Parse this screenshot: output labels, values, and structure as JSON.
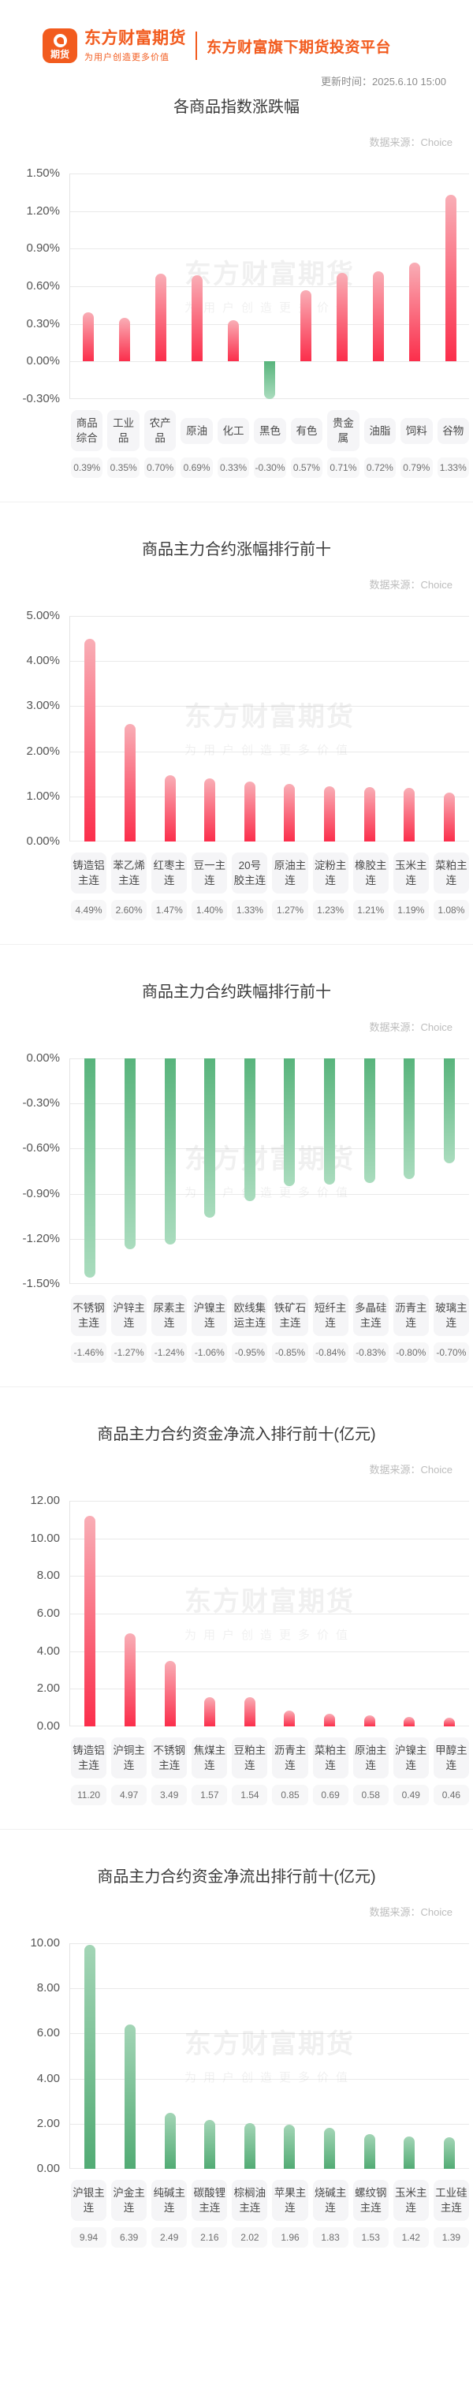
{
  "header": {
    "logo_icon_text": "期货",
    "brand": "东方财富期货",
    "slogan": "为用户创造更多价值",
    "platform_tagline": "东方财富旗下期货投资平台",
    "update_time": "更新时间：2025.6.10 15:00"
  },
  "watermark": {
    "line1": "东方财富期货",
    "line2": "为用户创造更多价值"
  },
  "colors": {
    "brand_orange": "#f25b1e",
    "bar_red_base": "#fb2e4b",
    "bar_red_tip": "#f9aeb6",
    "bar_green_base": "#52ab74",
    "bar_green_tip": "#aadcbe",
    "gridline": "#e9e9e9",
    "label_box_bg": "#f5f5f7"
  },
  "chart_data": [
    {
      "type": "bar",
      "title": "各商品指数涨跌幅",
      "source": "数据来源：Choice",
      "color": "auto",
      "axis": {
        "max": 1.5,
        "min": -0.3,
        "step": 0.3,
        "decimals": 2,
        "suffix": "%"
      },
      "grid": true,
      "categories": [
        "商品综合",
        "工业品",
        "农产品",
        "原油",
        "化工",
        "黑色",
        "有色",
        "贵金属",
        "油脂",
        "饲料",
        "谷物"
      ],
      "values": [
        0.39,
        0.35,
        0.7,
        0.69,
        0.33,
        -0.3,
        0.57,
        0.71,
        0.72,
        0.79,
        1.33
      ],
      "labels": [
        "0.39%",
        "0.35%",
        "0.70%",
        "0.69%",
        "0.33%",
        "-0.30%",
        "0.57%",
        "0.71%",
        "0.72%",
        "0.79%",
        "1.33%"
      ]
    },
    {
      "type": "bar",
      "title": "商品主力合约涨幅排行前十",
      "source": "数据来源：Choice",
      "color": "red",
      "axis": {
        "max": 5.0,
        "min": 0.0,
        "step": 1.0,
        "decimals": 2,
        "suffix": "%"
      },
      "grid": true,
      "categories": [
        "铸造铝主连",
        "苯乙烯主连",
        "红枣主连",
        "豆一主连",
        "20号胶主连",
        "原油主连",
        "淀粉主连",
        "橡胶主连",
        "玉米主连",
        "菜粕主连"
      ],
      "values": [
        4.49,
        2.6,
        1.47,
        1.4,
        1.33,
        1.27,
        1.23,
        1.21,
        1.19,
        1.08
      ],
      "labels": [
        "4.49%",
        "2.60%",
        "1.47%",
        "1.40%",
        "1.33%",
        "1.27%",
        "1.23%",
        "1.21%",
        "1.19%",
        "1.08%"
      ]
    },
    {
      "type": "bar",
      "title": "商品主力合约跌幅排行前十",
      "source": "数据来源：Choice",
      "color": "green",
      "axis": {
        "max": 0.0,
        "min": -1.5,
        "step": 0.3,
        "decimals": 2,
        "suffix": "%"
      },
      "grid": true,
      "categories": [
        "不锈钢主连",
        "沪锌主连",
        "尿素主连",
        "沪镍主连",
        "欧线集运主连",
        "铁矿石主连",
        "短纤主连",
        "多晶硅主连",
        "沥青主连",
        "玻璃主连"
      ],
      "values": [
        -1.46,
        -1.27,
        -1.24,
        -1.06,
        -0.95,
        -0.85,
        -0.84,
        -0.83,
        -0.8,
        -0.7
      ],
      "labels": [
        "-1.46%",
        "-1.27%",
        "-1.24%",
        "-1.06%",
        "-0.95%",
        "-0.85%",
        "-0.84%",
        "-0.83%",
        "-0.80%",
        "-0.70%"
      ]
    },
    {
      "type": "bar",
      "title": "商品主力合约资金净流入排行前十(亿元)",
      "source": "数据来源：Choice",
      "color": "red",
      "axis": {
        "max": 12.0,
        "min": 0.0,
        "step": 2.0,
        "decimals": 2,
        "suffix": ""
      },
      "grid": true,
      "categories": [
        "铸造铝主连",
        "沪铜主连",
        "不锈钢主连",
        "焦煤主连",
        "豆粕主连",
        "沥青主连",
        "菜粕主连",
        "原油主连",
        "沪镍主连",
        "甲醇主连"
      ],
      "values": [
        11.2,
        4.97,
        3.49,
        1.57,
        1.54,
        0.85,
        0.69,
        0.58,
        0.49,
        0.46
      ],
      "labels": [
        "11.20",
        "4.97",
        "3.49",
        "1.57",
        "1.54",
        "0.85",
        "0.69",
        "0.58",
        "0.49",
        "0.46"
      ]
    },
    {
      "type": "bar",
      "title": "商品主力合约资金净流出排行前十(亿元)",
      "source": "数据来源：Choice",
      "color": "green",
      "axis": {
        "max": 10.0,
        "min": 0.0,
        "step": 2.0,
        "decimals": 2,
        "suffix": ""
      },
      "grid": true,
      "categories": [
        "沪银主连",
        "沪金主连",
        "纯碱主连",
        "碳酸锂主连",
        "棕榈油主连",
        "苹果主连",
        "烧碱主连",
        "螺纹钢主连",
        "玉米主连",
        "工业硅主连"
      ],
      "values": [
        9.94,
        6.39,
        2.49,
        2.16,
        2.02,
        1.96,
        1.83,
        1.53,
        1.42,
        1.39
      ],
      "labels": [
        "9.94",
        "6.39",
        "2.49",
        "2.16",
        "2.02",
        "1.96",
        "1.83",
        "1.53",
        "1.42",
        "1.39"
      ]
    }
  ]
}
